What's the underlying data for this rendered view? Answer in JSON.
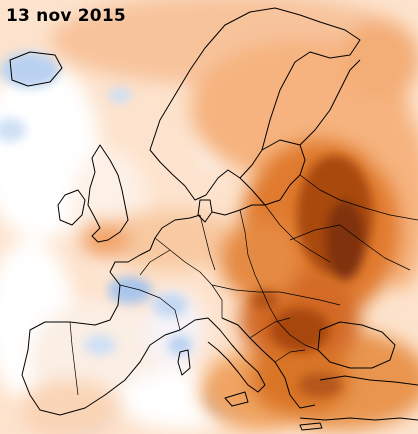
{
  "map": {
    "date_label": "13 nov 2015",
    "palette": {
      "cold_strong": "#8fb7e8",
      "cold_light": "#cfe0f6",
      "neutral": "#ffffff",
      "warm_light": "#fbdcc2",
      "warm_mid": "#f6b37f",
      "warm_strong": "#e07a2f",
      "hot": "#b65516",
      "very_hot": "#8a3a10",
      "border": "#000000"
    }
  }
}
